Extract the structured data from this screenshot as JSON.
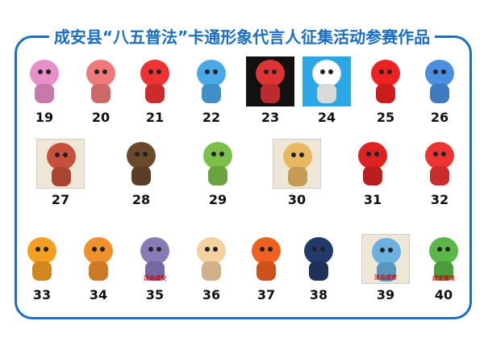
{
  "title": "成安县“八五普法”卡通形象代言人征集活动参赛作品",
  "accent": "#1a6fc0",
  "rows": [
    [
      {
        "n": "19",
        "c": "#e98fc8"
      },
      {
        "n": "20",
        "c": "#f07a7a"
      },
      {
        "n": "21",
        "c": "#e33"
      },
      {
        "n": "22",
        "c": "#4aa9e8"
      },
      {
        "n": "23",
        "c": "#d33",
        "style": "boxed"
      },
      {
        "n": "24",
        "c": "#fff",
        "style": "sky"
      },
      {
        "n": "25",
        "c": "#e22"
      },
      {
        "n": "26",
        "c": "#4b8fe0"
      }
    ],
    [
      {
        "n": "27",
        "c": "#c7503a",
        "style": "sketch"
      },
      {
        "n": "28",
        "c": "#6b4a2a"
      },
      {
        "n": "29",
        "c": "#7cc04a"
      },
      {
        "n": "30",
        "c": "#e8b860",
        "style": "sketch"
      },
      {
        "n": "31",
        "c": "#d22"
      },
      {
        "n": "32",
        "c": "#e33"
      }
    ],
    [
      {
        "n": "33",
        "c": "#f3a020"
      },
      {
        "n": "34",
        "c": "#f0902a"
      },
      {
        "n": "35",
        "c": "#8a7ab8",
        "cap": "法治成安"
      },
      {
        "n": "36",
        "c": "#f5d0a0"
      },
      {
        "n": "37",
        "c": "#f06020"
      },
      {
        "n": "38",
        "c": "#223a6a"
      },
      {
        "n": "39",
        "c": "#6ab0e0",
        "style": "sketch",
        "cap": "法治成安"
      },
      {
        "n": "40",
        "c": "#5ab848",
        "cap": "成安普法"
      }
    ]
  ]
}
